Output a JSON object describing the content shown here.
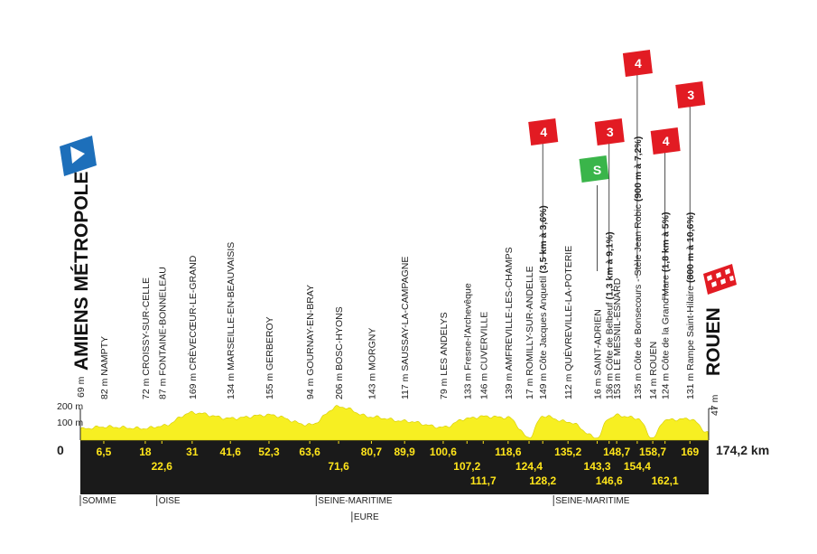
{
  "start": {
    "name": "AMIENS MÉTROPOLE",
    "alt": "69 m"
  },
  "finish": {
    "name": "ROUEN",
    "alt": "47 m"
  },
  "scale": {
    "zero": "0",
    "y200": "200 m",
    "y100": "100 m",
    "total": "174,2 km"
  },
  "colors": {
    "profile": "#f7ef22",
    "ground": "#1a1a1a",
    "km_text": "#ffe51a",
    "climb": "#e21b23",
    "sprint": "#3ab54a",
    "start_flag": "#1d6fba"
  },
  "waypoints": [
    {
      "km": "6,5",
      "row": 0,
      "alt": "82 m",
      "name": "NAMPTY",
      "bold": ""
    },
    {
      "km": "18",
      "row": 0,
      "alt": "72 m",
      "name": "CROISSY-SUR-CELLE",
      "bold": ""
    },
    {
      "km": "22,6",
      "row": 1,
      "alt": "87 m",
      "name": "FONTAINE-BONNELEAU",
      "bold": ""
    },
    {
      "km": "31",
      "row": 0,
      "alt": "169 m",
      "name": "CRÈVECŒUR-LE-GRAND",
      "bold": ""
    },
    {
      "km": "41,6",
      "row": 0,
      "alt": "134 m",
      "name": "MARSEILLE-EN-BEAUVAISIS",
      "bold": ""
    },
    {
      "km": "52,3",
      "row": 0,
      "alt": "155 m",
      "name": "GERBEROY",
      "bold": ""
    },
    {
      "km": "63,6",
      "row": 0,
      "alt": "94 m",
      "name": "GOURNAY-EN-BRAY",
      "bold": ""
    },
    {
      "km": "71,6",
      "row": 1,
      "alt": "206 m",
      "name": "BOSC-HYONS",
      "bold": ""
    },
    {
      "km": "80,7",
      "row": 0,
      "alt": "143 m",
      "name": "MORGNY",
      "bold": ""
    },
    {
      "km": "89,9",
      "row": 0,
      "alt": "117 m",
      "name": "SAUSSAY-LA-CAMPAGNE",
      "bold": ""
    },
    {
      "km": "100,6",
      "row": 0,
      "alt": "79 m",
      "name": "LES ANDELYS",
      "bold": ""
    },
    {
      "km": "107,2",
      "row": 1,
      "alt": "133 m",
      "name": "Fresne-l'Archevêque",
      "bold": ""
    },
    {
      "km": "111,7",
      "row": 2,
      "alt": "146 m",
      "name": "CUVERVILLE",
      "bold": ""
    },
    {
      "km": "118,6",
      "row": 0,
      "alt": "139 m",
      "name": "AMFREVILLE-LES-CHAMPS",
      "bold": ""
    },
    {
      "km": "124,4",
      "row": 1,
      "alt": "17 m",
      "name": "ROMILLY-SUR-ANDELLE",
      "bold": ""
    },
    {
      "km": "128,2",
      "row": 2,
      "alt": "149 m",
      "name": "Côte Jacques Anquetil ",
      "bold": "(3,5 km à 3,6%)"
    },
    {
      "km": "135,2",
      "row": 0,
      "alt": "112 m",
      "name": "QUÉVREVILLE-LA-POTERIE",
      "bold": ""
    },
    {
      "km": "143,3",
      "row": 1,
      "alt": "16 m",
      "name": "SAINT-ADRIEN",
      "bold": ""
    },
    {
      "km": "146,6",
      "row": 2,
      "alt": "136 m",
      "name": "Côte de Belbeuf ",
      "bold": "(1,3 km à 9,1%)"
    },
    {
      "km": "148,7",
      "row": 0,
      "alt": "153 m",
      "name": "LE MESNIL-ESNARD",
      "bold": ""
    },
    {
      "km": "154,4",
      "row": 1,
      "alt": "135 m",
      "name": "Côte de Bonsecours - Stèle Jean Robic ",
      "bold": "(900 m à 7,2%)"
    },
    {
      "km": "158,7",
      "row": 0,
      "alt": "14 m",
      "name": "ROUEN",
      "bold": ""
    },
    {
      "km": "162,1",
      "row": 2,
      "alt": "124 m",
      "name": "Côte de la Grand'Mare ",
      "bold": "(1,8 km à 5%)"
    },
    {
      "km": "169",
      "row": 0,
      "alt": "131 m",
      "name": "Rampe Saint-Hilaire ",
      "bold": "(800 m à 10,6%)"
    }
  ],
  "climbs": [
    {
      "cat": "4",
      "km": 128.2
    },
    {
      "cat": "3",
      "km": 146.6
    },
    {
      "cat": "4",
      "km": 154.4
    },
    {
      "cat": "4",
      "km": 162.1
    },
    {
      "cat": "3",
      "km": 169
    }
  ],
  "sprint": {
    "label": "S",
    "km": 143.3
  },
  "departments": [
    {
      "name": "SOMME",
      "row": 0,
      "km": 0
    },
    {
      "name": "OISE",
      "row": 0,
      "km": 21.2
    },
    {
      "name": "SEINE-MARITIME",
      "row": 0,
      "km": 65.4
    },
    {
      "name": "EURE",
      "row": 1,
      "km": 75.3
    },
    {
      "name": "SEINE-MARITIME",
      "row": 0,
      "km": 131.2
    }
  ]
}
